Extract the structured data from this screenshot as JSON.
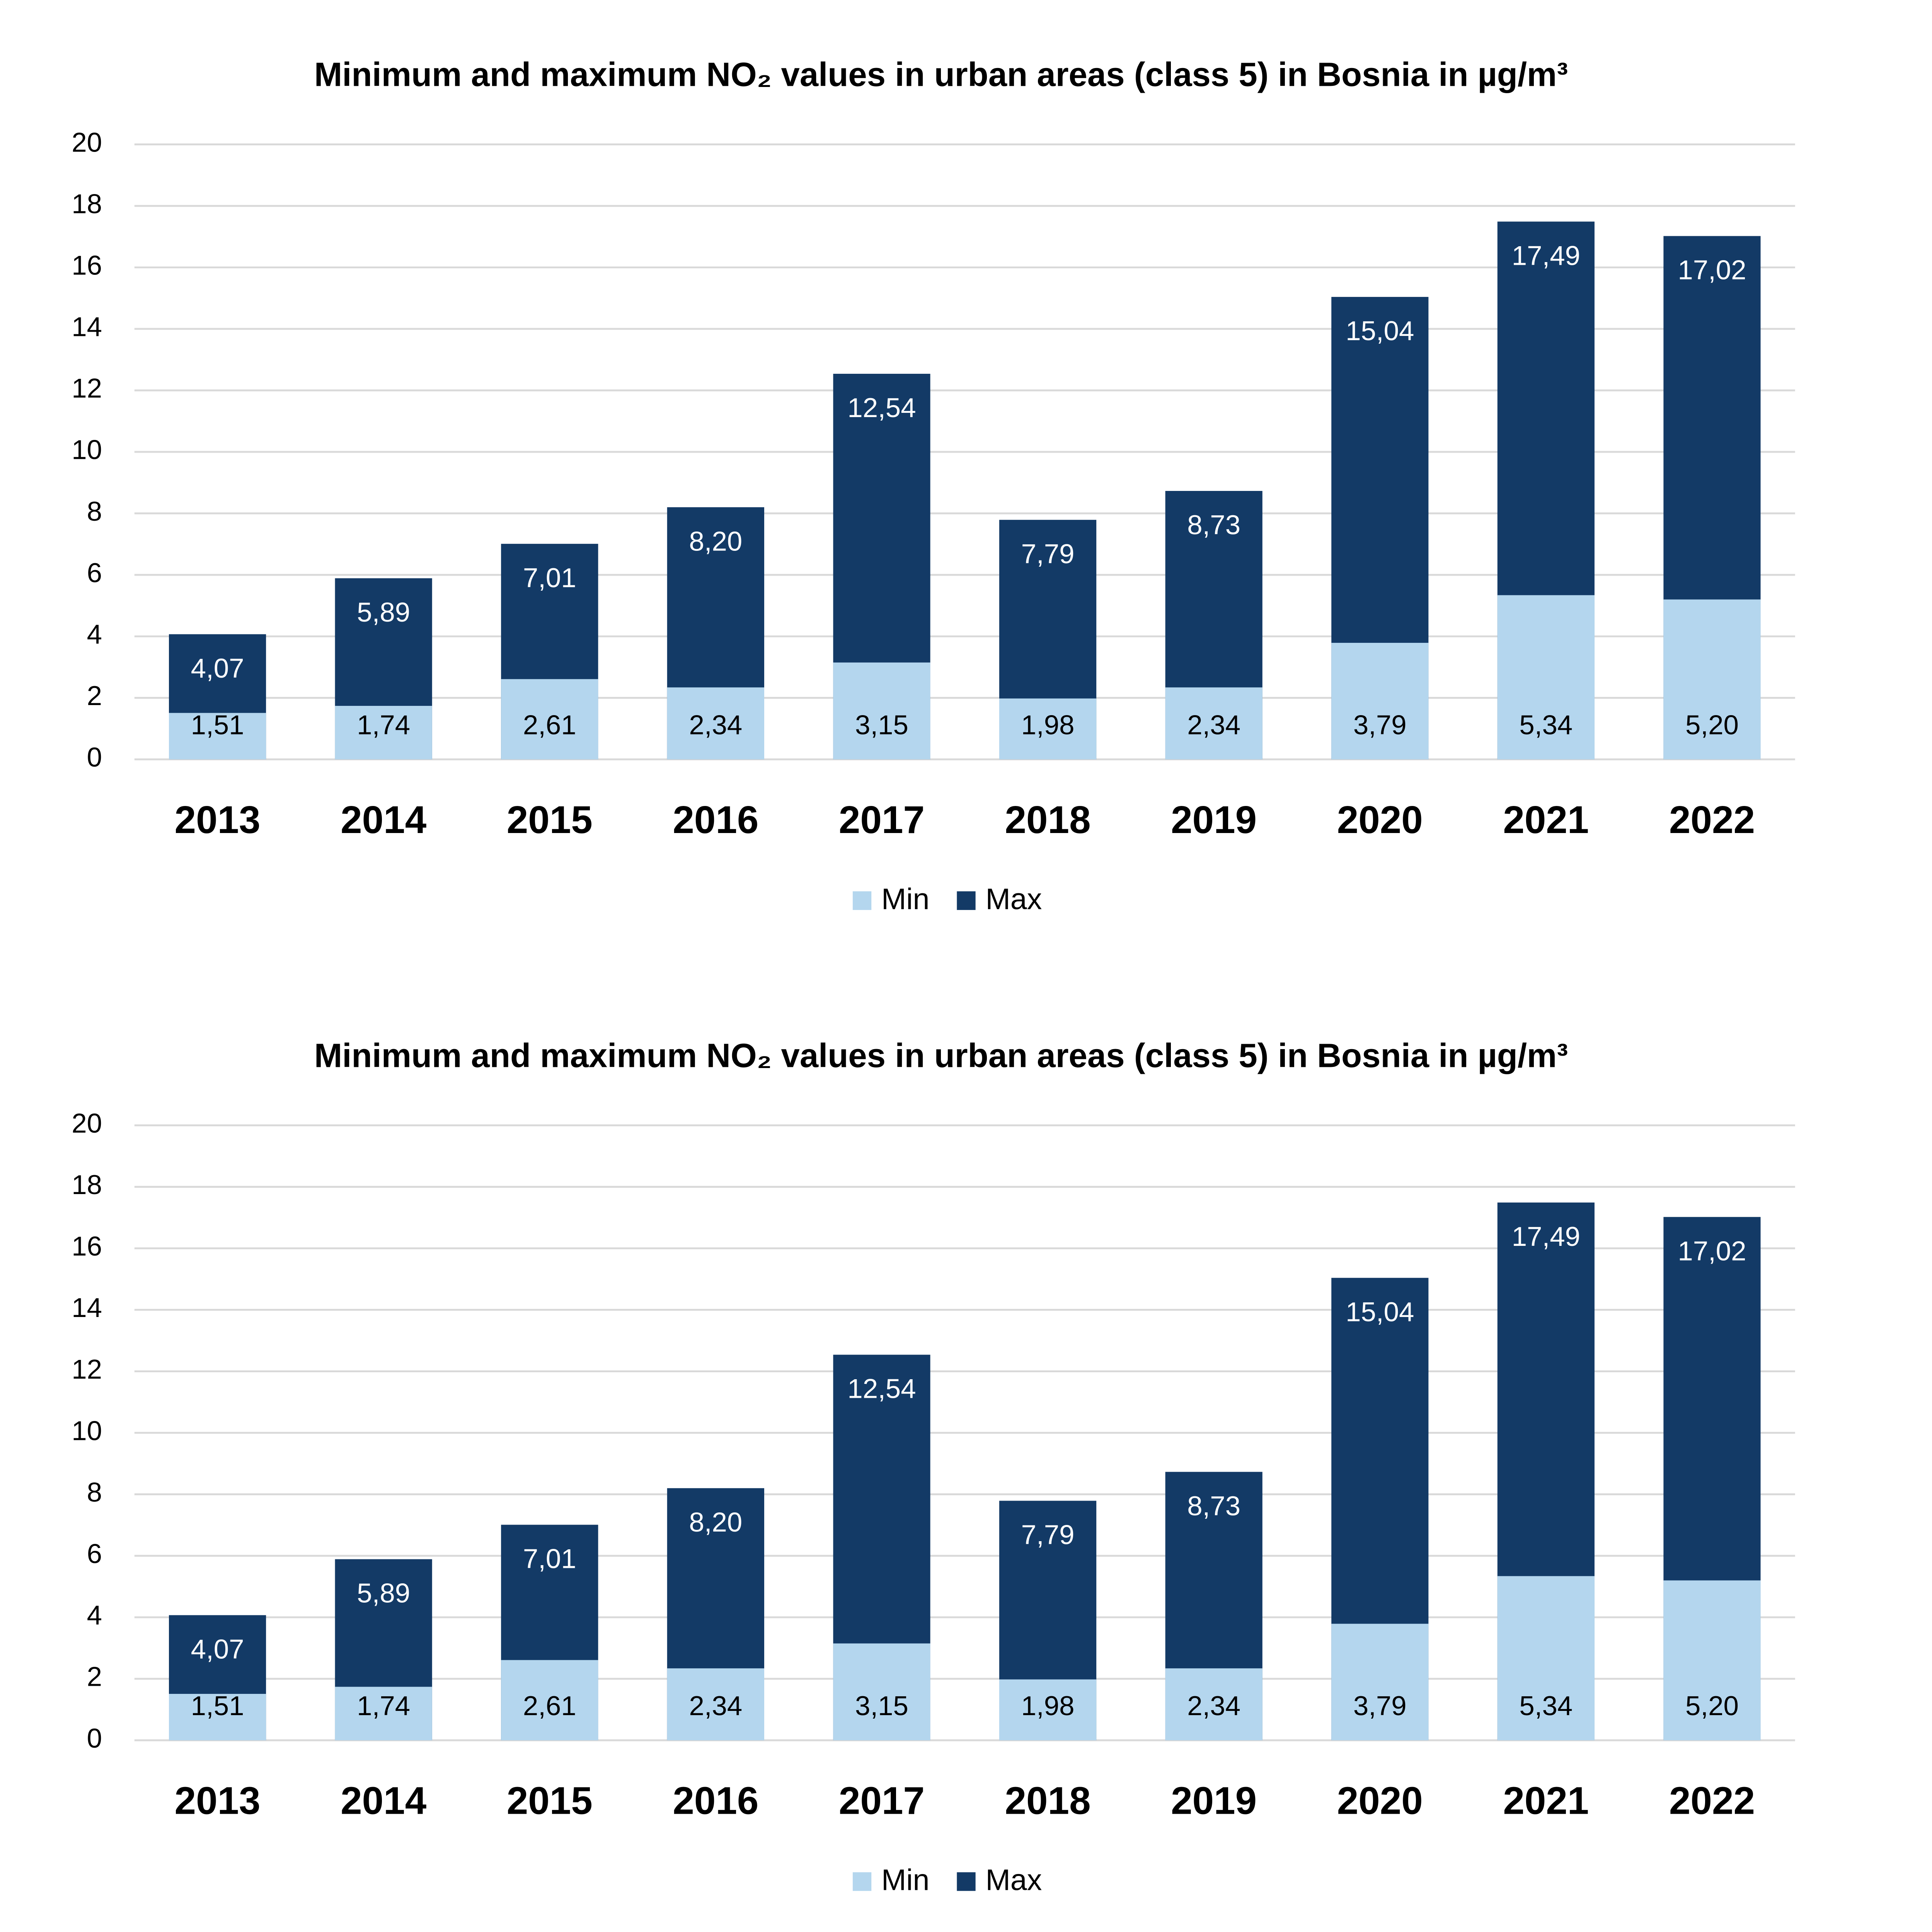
{
  "chart_data": [
    {
      "type": "bar",
      "title": "Minimum and maximum NO₂ values in urban areas (class 5) in Bosnia in µg/m³",
      "categories": [
        "2013",
        "2014",
        "2015",
        "2016",
        "2017",
        "2018",
        "2019",
        "2020",
        "2021",
        "2022"
      ],
      "series": [
        {
          "name": "Min",
          "color": "#b4d6ee",
          "values": [
            1.51,
            1.74,
            2.61,
            2.34,
            3.15,
            1.98,
            2.34,
            3.79,
            5.34,
            5.2
          ],
          "value_labels": [
            "1,51",
            "1,74",
            "2,61",
            "2,34",
            "3,15",
            "1,98",
            "2,34",
            "3,79",
            "5,34",
            "5,20"
          ]
        },
        {
          "name": "Max",
          "color": "#133a66",
          "values": [
            4.07,
            5.89,
            7.01,
            8.2,
            12.54,
            7.79,
            8.73,
            15.04,
            17.49,
            17.02
          ],
          "value_labels": [
            "4,07",
            "5,89",
            "7,01",
            "8,20",
            "12,54",
            "7,79",
            "8,73",
            "15,04",
            "17,49",
            "17,02"
          ]
        }
      ],
      "ylim": [
        0,
        20
      ],
      "yticks": [
        0,
        2,
        4,
        6,
        8,
        10,
        12,
        14,
        16,
        18,
        20
      ],
      "grid": true,
      "legend": "bottom"
    },
    {
      "type": "bar",
      "title": "Minimum and maximum NO₂ values in urban areas (class 5) in Bosnia in µg/m³",
      "categories": [
        "2013",
        "2014",
        "2015",
        "2016",
        "2017",
        "2018",
        "2019",
        "2020",
        "2021",
        "2022"
      ],
      "series": [
        {
          "name": "Min",
          "color": "#b4d6ee",
          "values": [
            1.51,
            1.74,
            2.61,
            2.34,
            3.15,
            1.98,
            2.34,
            3.79,
            5.34,
            5.2
          ],
          "value_labels": [
            "1,51",
            "1,74",
            "2,61",
            "2,34",
            "3,15",
            "1,98",
            "2,34",
            "3,79",
            "5,34",
            "5,20"
          ]
        },
        {
          "name": "Max",
          "color": "#133a66",
          "values": [
            4.07,
            5.89,
            7.01,
            8.2,
            12.54,
            7.79,
            8.73,
            15.04,
            17.49,
            17.02
          ],
          "value_labels": [
            "4,07",
            "5,89",
            "7,01",
            "8,20",
            "12,54",
            "7,79",
            "8,73",
            "15,04",
            "17,49",
            "17,02"
          ]
        }
      ],
      "ylim": [
        0,
        20
      ],
      "yticks": [
        0,
        2,
        4,
        6,
        8,
        10,
        12,
        14,
        16,
        18,
        20
      ],
      "grid": true,
      "legend": "bottom"
    }
  ]
}
